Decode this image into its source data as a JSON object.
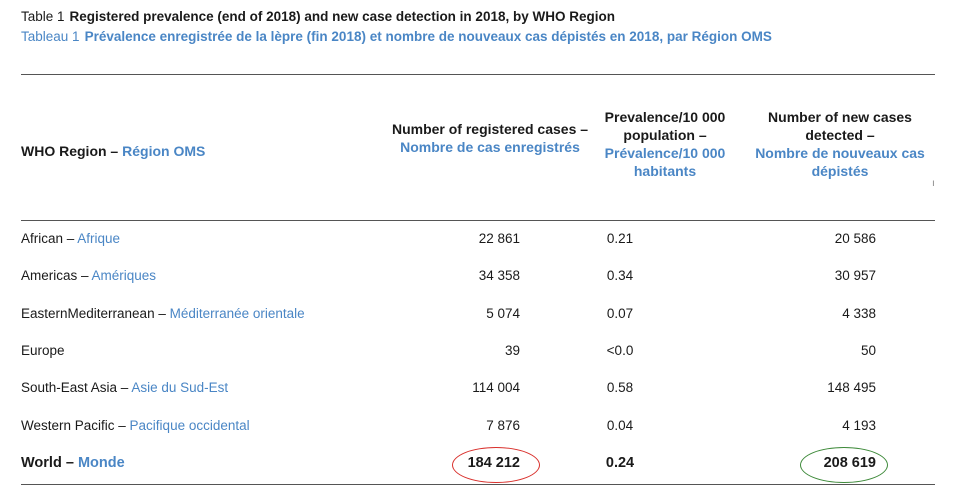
{
  "table": {
    "label_en": "Table 1",
    "title_en": "Registered prevalence (end of 2018) and new case detection in 2018, by WHO Region",
    "label_fr": "Tableau 1",
    "title_fr": "Prévalence enregistrée de la lèpre (fin 2018) et nombre de nouveaux cas dépistés en 2018, par Région OMS"
  },
  "headers": {
    "region_en": "WHO Region – ",
    "region_fr": "Région OMS",
    "registered_en": "Number of registered cases –",
    "registered_fr": "Nombre de cas enregistrés",
    "prevalence_en": "Prevalence/10 000 population –",
    "prevalence_fr": "Prévalence/10 000 habitants",
    "new_en": "Number of new cases detected –",
    "new_fr": "Nombre de nouveaux cas dépistés",
    "stray_mark": "ı"
  },
  "rows": [
    {
      "region_en": "African – ",
      "region_fr": "Afrique",
      "registered": "22 861",
      "prevalence": "0.21",
      "new_cases": "20 586"
    },
    {
      "region_en": "Americas – ",
      "region_fr": "Amériques",
      "registered": "34 358",
      "prevalence": "0.34",
      "new_cases": "30 957"
    },
    {
      "region_en": "EasternMediterranean – ",
      "region_fr": "Méditerranée orientale",
      "registered": "5 074",
      "prevalence": "0.07",
      "new_cases": "4 338"
    },
    {
      "region_en": "Europe",
      "region_fr": "",
      "registered": "39",
      "prevalence": "<0.0",
      "new_cases": "50"
    },
    {
      "region_en": "South-East Asia – ",
      "region_fr": "Asie du Sud-Est",
      "registered": "114 004",
      "prevalence": "0.58",
      "new_cases": "148 495"
    },
    {
      "region_en": "Western Pacific – ",
      "region_fr": "Pacifique occidental",
      "registered": "7 876",
      "prevalence": "0.04",
      "new_cases": "4 193"
    }
  ],
  "world": {
    "region_en": "World – ",
    "region_fr": "Monde",
    "registered": "184 212",
    "prevalence": "0.24",
    "new_cases": "208 619"
  },
  "highlights": {
    "registered_circle_color": "#d9302c",
    "new_cases_circle_color": "#3e8a3a"
  }
}
